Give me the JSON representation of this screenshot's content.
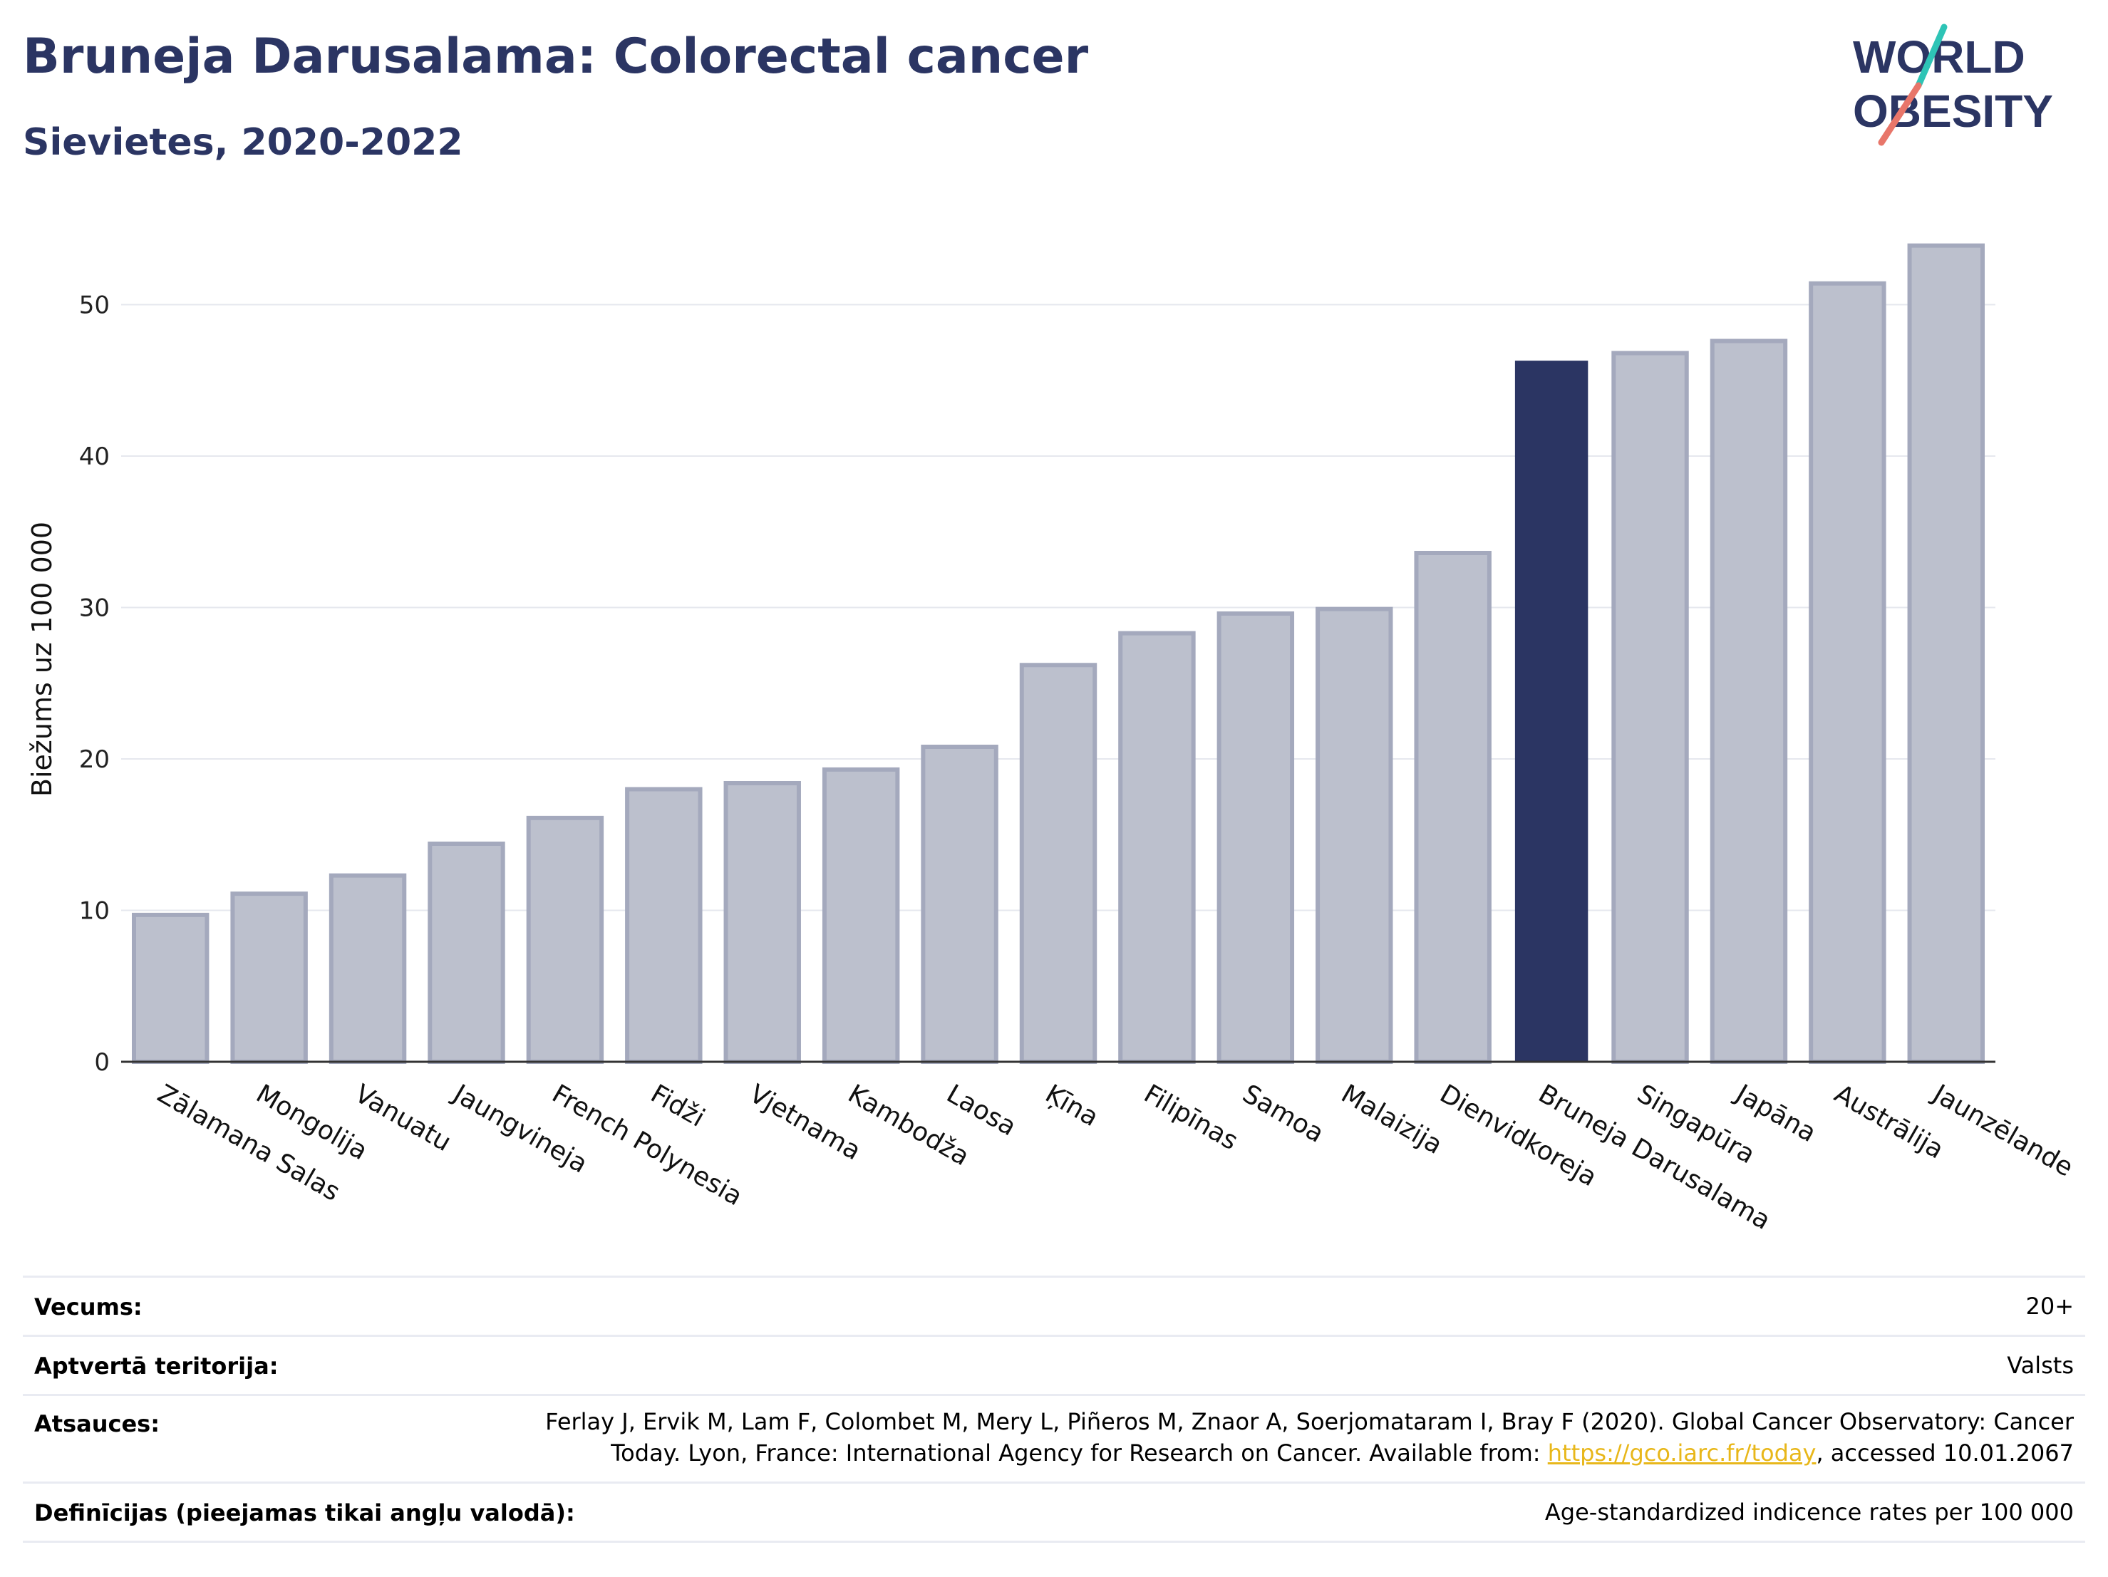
{
  "header": {
    "title": "Bruneja Darusalama: Colorectal cancer",
    "subtitle": "Sievietes, 2020-2022"
  },
  "logo": {
    "line1": "WORLD",
    "line2": "OBESITY",
    "colors": {
      "text": "#2b3563",
      "slash_top": "#2ec4b6",
      "slash_bottom": "#e8766a"
    }
  },
  "chart_data": {
    "type": "bar",
    "ylabel": "Biežums uz 100 000",
    "ylim": [
      0,
      56
    ],
    "yticks": [
      0,
      10,
      20,
      30,
      40,
      50
    ],
    "grid": true,
    "highlight": "Bruneja Darusalama",
    "colors": {
      "bar": "#bcc0cd",
      "bar_edge": "#a4a9bd",
      "highlight": "#2b3563",
      "grid": "#e6e8ee",
      "axis": "#333333"
    },
    "categories": [
      "Zālamana Salas",
      "Mongolija",
      "Vanuatu",
      "Jaungvineja",
      "French Polynesia",
      "Fidži",
      "Vjetnama",
      "Kambodža",
      "Laosa",
      "Ķīna",
      "Filipīnas",
      "Samoa",
      "Malaizija",
      "Dienvidkoreja",
      "Bruneja Darusalama",
      "Singapūra",
      "Japāna",
      "Austrālija",
      "Jaunzēlande"
    ],
    "values": [
      9.7,
      11.1,
      12.3,
      14.4,
      16.1,
      18.0,
      18.4,
      19.3,
      20.8,
      26.2,
      28.3,
      29.6,
      29.9,
      33.6,
      46.3,
      46.8,
      47.6,
      51.4,
      53.9
    ]
  },
  "metadata": {
    "age": {
      "label": "Vecums:",
      "value": "20+"
    },
    "coverage": {
      "label": "Aptvertā teritorija:",
      "value": "Valsts"
    },
    "references": {
      "label": "Atsauces:",
      "line1": "Ferlay J, Ervik M, Lam F, Colombet M, Mery L, Piñeros M, Znaor A, Soerjomataram I, Bray F (2020). Global Cancer Observatory: Cancer",
      "line2_prefix": "Today. Lyon, France: International Agency for Research on Cancer. Available from: ",
      "link": "https://gco.iarc.fr/today",
      "line2_suffix": ", accessed 10.01.2067"
    },
    "definitions": {
      "label": "Definīcijas (pieejamas tikai angļu valodā):",
      "value": "Age-standardized indicence rates per 100 000"
    }
  }
}
